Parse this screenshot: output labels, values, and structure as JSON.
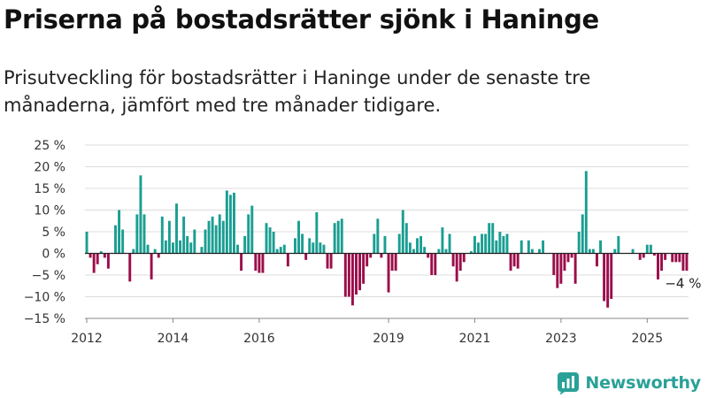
{
  "title": "Priserna på bostadsrätter sjönk i Haninge",
  "subtitle": "Prisutveckling för bostadsrätter i Haninge under de senaste tre månaderna, jämfört med tre månader tidigare.",
  "brand": "Newsworthy",
  "colors": {
    "positive": "#1a9e92",
    "negative": "#9b0d4a",
    "grid": "#dddddd",
    "brand": "#2aa198"
  },
  "chart_data": {
    "type": "bar",
    "x_unit": "month",
    "x_start": "2012-01",
    "x_end": "2025-12",
    "ylim": [
      -15,
      25
    ],
    "y_ticks": [
      -15,
      -10,
      -5,
      0,
      5,
      10,
      15,
      20,
      25
    ],
    "y_tick_labels": [
      "−15 %",
      "−10 %",
      "−5 %",
      "0 %",
      "5 %",
      "10 %",
      "15 %",
      "20 %",
      "25 %"
    ],
    "x_ticks": [
      "2012",
      "2014",
      "2016",
      "2019",
      "2021",
      "2023",
      "2025"
    ],
    "grid": true,
    "annotation": {
      "text": "−4 %",
      "x": "2025-11"
    },
    "series": [
      {
        "start": "2012-01",
        "values": [
          5,
          -1,
          -4.5,
          -2.5,
          0.5,
          -1,
          -3.5,
          null,
          6.5,
          10,
          5.5,
          null
        ]
      },
      {
        "start": "2013-01",
        "values": [
          -6.5,
          1,
          9,
          18,
          9,
          2,
          -6,
          1,
          -1,
          8.5,
          3,
          7.5
        ]
      },
      {
        "start": "2014-01",
        "values": [
          2.5,
          11.5,
          3,
          8.5,
          4,
          2.5,
          5.5,
          null,
          1.5,
          5.5,
          7.5,
          8.5
        ]
      },
      {
        "start": "2015-01",
        "values": [
          6.5,
          9,
          7.5,
          14.5,
          13.5,
          14,
          2,
          -4,
          4,
          9,
          11,
          -4
        ]
      },
      {
        "start": "2016-01",
        "values": [
          -4.5,
          -4.5,
          7,
          6,
          5,
          1,
          1.5,
          2,
          -3,
          null,
          3.5,
          7.5
        ]
      },
      {
        "start": "2017-01",
        "values": [
          4.5,
          -1.5,
          3.5,
          2.5,
          9.5,
          2.5,
          2,
          -3.5,
          -3.5,
          7,
          7.5,
          8
        ]
      },
      {
        "start": "2018-01",
        "values": [
          -10,
          -10,
          -12,
          -9.5,
          -8.5,
          -7,
          -3,
          -1,
          4.5,
          8,
          -1,
          4
        ]
      },
      {
        "start": "2019-01",
        "values": [
          -9,
          -4,
          -4,
          4.5,
          10,
          7,
          2.5,
          1,
          3.5,
          4,
          1.5,
          -1
        ]
      },
      {
        "start": "2020-01",
        "values": [
          -5,
          -5,
          1,
          6,
          1,
          4.5,
          -3,
          -6.5,
          -4,
          -2,
          null,
          0.5
        ]
      },
      {
        "start": "2021-01",
        "values": [
          4,
          2.5,
          4.5,
          4.5,
          7,
          7,
          3,
          5,
          4,
          4.5,
          -4,
          -3
        ]
      },
      {
        "start": "2022-01",
        "values": [
          -3.5,
          3,
          null,
          3,
          1,
          null,
          1,
          3,
          null,
          null,
          -5,
          -8
        ]
      },
      {
        "start": "2023-01",
        "values": [
          -7,
          -4,
          -2,
          -1,
          -7,
          5,
          9,
          19,
          1,
          1,
          -3,
          3
        ]
      },
      {
        "start": "2024-01",
        "values": [
          -11,
          -12.5,
          -10.5,
          1,
          4,
          null,
          null,
          null,
          1,
          null,
          -1.5,
          -1
        ]
      },
      {
        "start": "2025-01",
        "values": [
          2,
          2,
          -0.5,
          -6,
          -4,
          -1.5,
          null,
          -2,
          -2,
          -2,
          -4,
          -4
        ]
      }
    ]
  }
}
